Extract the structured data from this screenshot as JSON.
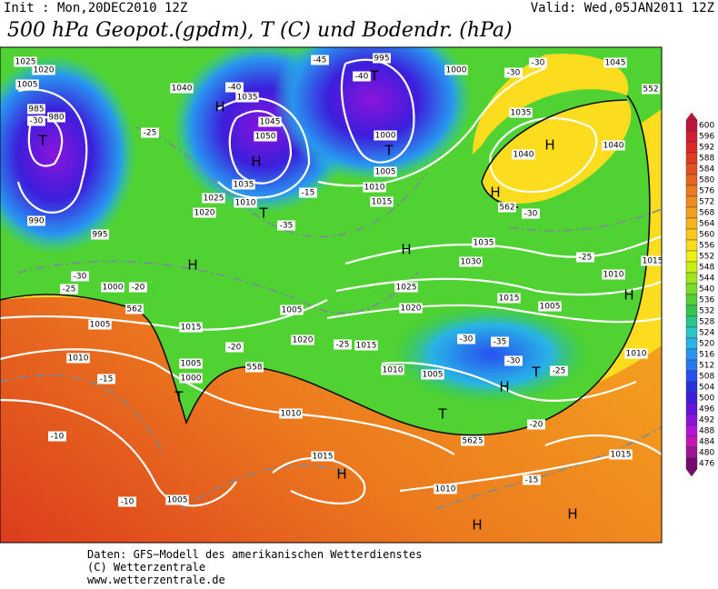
{
  "header": {
    "init": "Init : Mon,20DEC2010  12Z",
    "valid": "Valid: Wed,05JAN2011  12Z",
    "title": "500 hPa Geopot.(gpdm), T (C) und Bodendr. (hPa)"
  },
  "footer": [
    "Daten: GFS−Modell des amerikanischen Wetterdienstes",
    "(C) Wetterzentrale",
    "www.wetterzentrale.de"
  ],
  "legend": {
    "values": [
      600,
      596,
      592,
      588,
      584,
      580,
      576,
      572,
      568,
      564,
      560,
      556,
      552,
      548,
      544,
      540,
      536,
      532,
      528,
      524,
      520,
      516,
      512,
      508,
      504,
      500,
      496,
      492,
      488,
      484,
      480,
      476
    ],
    "colors": [
      "#c0143c",
      "#d21e32",
      "#dc2828",
      "#e03c1e",
      "#e4501e",
      "#e8641e",
      "#ec7a1e",
      "#f08c1e",
      "#f4a01e",
      "#f8b41e",
      "#fcc81e",
      "#fcdc1e",
      "#f0f014",
      "#c8f014",
      "#a0e61e",
      "#78dc28",
      "#50d232",
      "#32c850",
      "#28c88c",
      "#28c8c8",
      "#28b4e6",
      "#2896f0",
      "#2878f0",
      "#2850f0",
      "#2832dc",
      "#3c1edc",
      "#6414dc",
      "#8c14dc",
      "#b414dc",
      "#c814b4",
      "#a01496",
      "#780a6e"
    ]
  },
  "map_labels": [
    "1025",
    "1020",
    "1005",
    "985",
    "980",
    "-30",
    "990",
    "995",
    "-25",
    "-30",
    "1000",
    "-20",
    "1005",
    "1010",
    "-15",
    "-10",
    "1005",
    "-10",
    "1015",
    "1005",
    "1000",
    "-20",
    "1010",
    "1015",
    "1010",
    "-15",
    "1015",
    "1005",
    "1005",
    "1010",
    "1015",
    "-25",
    "1020",
    "1005",
    "1020",
    "1025",
    "1030",
    "1035",
    "1015",
    "1005",
    "-35",
    "-30",
    "-30",
    "-25",
    "-20",
    "1010",
    "1010",
    "-25",
    "1015",
    "-30",
    "1040",
    "1035",
    "1040",
    "1045",
    "-30",
    "-30",
    "1000",
    "-45",
    "-40",
    "995",
    "1000",
    "1005",
    "1010",
    "1015",
    "-15",
    "-35",
    "1020",
    "1025",
    "1035",
    "1010",
    "1050",
    "1045",
    "1040",
    "-40",
    "1035",
    "-25",
    "562",
    "558",
    "562",
    "562",
    "552"
  ],
  "markers": [
    "T",
    "H",
    "H",
    "T",
    "H",
    "T",
    "T",
    "T",
    "H",
    "H",
    "H",
    "H",
    "T",
    "H",
    "T",
    "H",
    "H",
    "H"
  ]
}
